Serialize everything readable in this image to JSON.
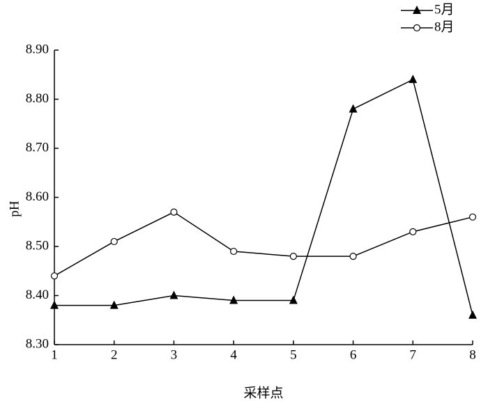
{
  "chart_data": {
    "type": "line",
    "x_label": "采样点",
    "y_label": "pH",
    "x": [
      1,
      2,
      3,
      4,
      5,
      6,
      7,
      8
    ],
    "xlim": [
      1,
      8
    ],
    "xticks": [
      1,
      2,
      3,
      4,
      5,
      6,
      7,
      8
    ],
    "ylim": [
      8.3,
      8.9
    ],
    "yticks": [
      {
        "value": 8.3,
        "label": "8.30"
      },
      {
        "value": 8.4,
        "label": "8.40"
      },
      {
        "value": 8.5,
        "label": "8.50"
      },
      {
        "value": 8.6,
        "label": "8.60"
      },
      {
        "value": 8.7,
        "label": "8.70"
      },
      {
        "value": 8.8,
        "label": "8.80"
      },
      {
        "value": 8.9,
        "label": "8.90"
      }
    ],
    "grid": false,
    "legend": "top-right",
    "series": [
      {
        "name": "5月",
        "color": "#000000",
        "marker": "triangle",
        "values": [
          8.38,
          8.38,
          8.4,
          8.39,
          8.39,
          8.78,
          8.84,
          8.36
        ]
      },
      {
        "name": "8月",
        "color": "#000000",
        "marker": "circle",
        "values": [
          8.44,
          8.51,
          8.57,
          8.49,
          8.48,
          8.48,
          8.53,
          8.56
        ]
      }
    ]
  }
}
